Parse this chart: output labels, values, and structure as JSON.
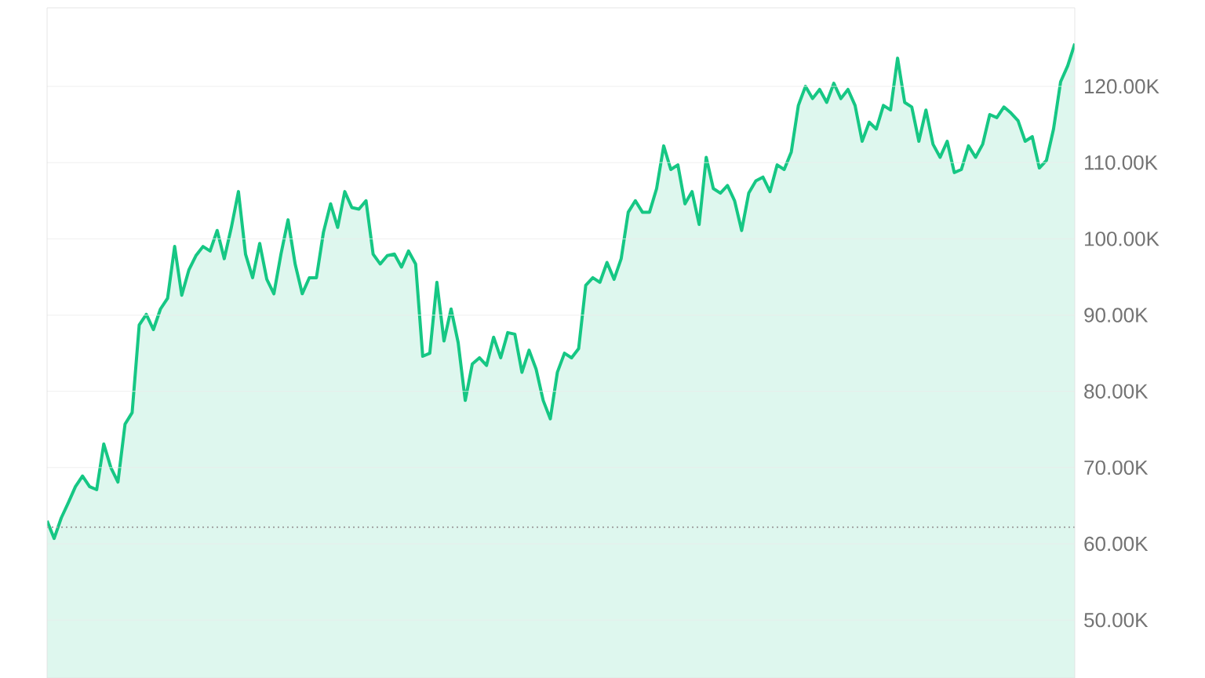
{
  "chart_data": {
    "type": "area",
    "categories": [
      null,
      null,
      null,
      null,
      null,
      null,
      null,
      null,
      null,
      null,
      null,
      null,
      null,
      null,
      null,
      null,
      null,
      null,
      null,
      null,
      null,
      null,
      null,
      null,
      null,
      null,
      null,
      null,
      null,
      null,
      null,
      null,
      null,
      null,
      null,
      null,
      null,
      null,
      null,
      null,
      null,
      null,
      null,
      null,
      null,
      null,
      null,
      null,
      null,
      null,
      null,
      null,
      null,
      null,
      null,
      null,
      null,
      null,
      null,
      null,
      null,
      null,
      null,
      null,
      null,
      null,
      null,
      null,
      null,
      null,
      null,
      null,
      null,
      null,
      null,
      null,
      null,
      null,
      null,
      null,
      null,
      null,
      null,
      null,
      null,
      null,
      null,
      null,
      null,
      null,
      null,
      null,
      null,
      null,
      null,
      null,
      null,
      null,
      null,
      null,
      null,
      null,
      null,
      null,
      null,
      null,
      null,
      null,
      null,
      null,
      null,
      null,
      null,
      null,
      null,
      null,
      null,
      null,
      null,
      null,
      null,
      null,
      null,
      null,
      null,
      null,
      null,
      null,
      null,
      null,
      null,
      null,
      null,
      null,
      null,
      null,
      null,
      null,
      null,
      null,
      null,
      null,
      null,
      null,
      null,
      null
    ],
    "series": [
      {
        "color": "#16c784",
        "values": [
          63.0,
          60.7,
          63.4,
          65.4,
          67.5,
          68.9,
          67.5,
          67.1,
          73.1,
          70.0,
          68.1,
          75.7,
          77.2,
          88.7,
          90.1,
          88.1,
          90.8,
          92.2,
          99.0,
          92.6,
          95.9,
          97.8,
          99.0,
          98.4,
          101.1,
          97.4,
          101.5,
          106.2,
          98.0,
          94.9,
          99.4,
          94.7,
          92.8,
          98.0,
          102.5,
          96.7,
          92.8,
          94.9,
          94.9,
          100.9,
          104.6,
          101.5,
          106.2,
          104.1,
          103.9,
          105.0,
          98.0,
          96.7,
          97.8,
          98.0,
          96.3,
          98.4,
          96.7,
          84.6,
          85.0,
          94.3,
          86.6,
          90.8,
          86.4,
          78.8,
          83.6,
          84.4,
          83.4,
          87.1,
          84.4,
          87.7,
          87.5,
          82.5,
          85.4,
          82.9,
          78.8,
          76.4,
          82.5,
          85.0,
          84.4,
          85.6,
          93.9,
          94.9,
          94.3,
          96.9,
          94.7,
          97.4,
          103.5,
          105.0,
          103.5,
          103.5,
          106.6,
          112.2,
          109.1,
          109.7,
          104.6,
          106.2,
          101.9,
          110.7,
          106.6,
          106.0,
          107.0,
          105.0,
          101.1,
          106.0,
          107.6,
          108.1,
          106.2,
          109.7,
          109.1,
          111.4,
          117.5,
          120.0,
          118.4,
          119.6,
          117.9,
          120.4,
          118.4,
          119.6,
          117.5,
          112.8,
          115.3,
          114.4,
          117.5,
          116.9,
          123.7,
          117.9,
          117.3,
          112.8,
          116.9,
          112.4,
          110.7,
          112.8,
          108.7,
          109.1,
          112.2,
          110.7,
          112.4,
          116.3,
          115.9,
          117.3,
          116.5,
          115.5,
          112.8,
          113.4,
          109.3,
          110.3,
          114.4,
          120.6,
          122.7,
          125.6
        ]
      }
    ],
    "ylim": [
      42.4,
      130.3
    ],
    "yticks": [
      {
        "value": 50,
        "label": "50.00K"
      },
      {
        "value": 60,
        "label": "60.00K"
      },
      {
        "value": 70,
        "label": "70.00K"
      },
      {
        "value": 80,
        "label": "80.00K"
      },
      {
        "value": 90,
        "label": "90.00K"
      },
      {
        "value": 100,
        "label": "100.00K"
      },
      {
        "value": 110,
        "label": "110.00K"
      },
      {
        "value": 120,
        "label": "120.00K"
      }
    ],
    "grid": "y",
    "tick_labels": "y",
    "ref_lines": [
      {
        "axis": "y",
        "value": 62.2,
        "color": "#9e9e9e",
        "line_style": "dotted"
      }
    ]
  }
}
